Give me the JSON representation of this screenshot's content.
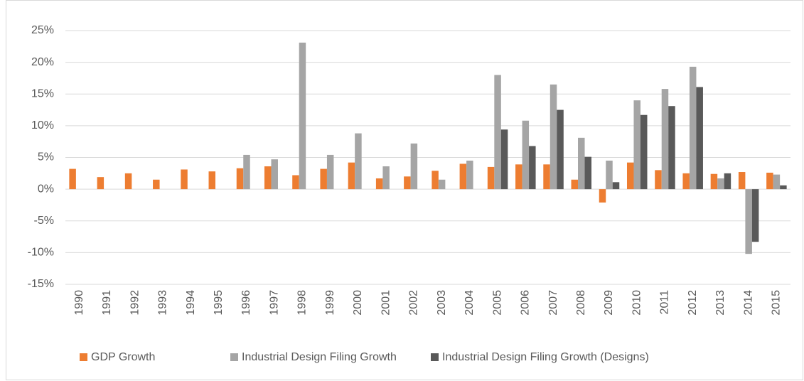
{
  "chart_data": {
    "type": "bar",
    "categories": [
      "1990",
      "1991",
      "1992",
      "1993",
      "1994",
      "1995",
      "1996",
      "1997",
      "1998",
      "1999",
      "2000",
      "2001",
      "2002",
      "2003",
      "2004",
      "2005",
      "2006",
      "2007",
      "2008",
      "2009",
      "2010",
      "2011",
      "2012",
      "2013",
      "2014",
      "2015"
    ],
    "series": [
      {
        "name": "GDP Growth",
        "color": "#ed7d31",
        "values": [
          3.2,
          1.9,
          2.5,
          1.5,
          3.1,
          2.8,
          3.3,
          3.6,
          2.2,
          3.2,
          4.2,
          1.7,
          2.0,
          2.9,
          4.0,
          3.5,
          3.9,
          3.9,
          1.5,
          -2.1,
          4.2,
          3.0,
          2.5,
          2.4,
          2.7,
          2.6
        ]
      },
      {
        "name": "Industrial Design Filing Growth",
        "color": "#a5a5a5",
        "values": [
          null,
          null,
          null,
          null,
          null,
          null,
          5.4,
          4.7,
          23.1,
          5.4,
          8.8,
          3.6,
          7.2,
          1.5,
          4.5,
          18.0,
          10.8,
          16.5,
          8.1,
          4.5,
          14.0,
          15.8,
          19.3,
          1.7,
          -10.2,
          2.3
        ]
      },
      {
        "name": "Industrial Design Filing Growth (Designs)",
        "color": "#595959",
        "values": [
          null,
          null,
          null,
          null,
          null,
          null,
          null,
          null,
          null,
          null,
          null,
          null,
          null,
          null,
          null,
          9.4,
          6.8,
          12.5,
          5.1,
          1.1,
          11.7,
          13.1,
          16.1,
          2.5,
          -8.3,
          0.6
        ]
      }
    ],
    "ylim": [
      -15,
      25
    ],
    "yticks": [
      {
        "value": -15,
        "label": "-15%"
      },
      {
        "value": -10,
        "label": "-10%"
      },
      {
        "value": -5,
        "label": "-5%"
      },
      {
        "value": 0,
        "label": "0%"
      },
      {
        "value": 5,
        "label": "5%"
      },
      {
        "value": 10,
        "label": "10%"
      },
      {
        "value": 15,
        "label": "15%"
      },
      {
        "value": 20,
        "label": "20%"
      },
      {
        "value": 25,
        "label": "25%"
      }
    ],
    "grid": true,
    "legend": "bottom"
  }
}
